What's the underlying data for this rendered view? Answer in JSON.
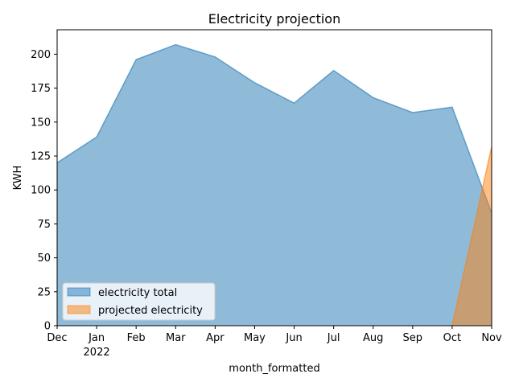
{
  "chart_data": {
    "type": "area",
    "title": "Electricity projection",
    "xlabel": "month_formatted",
    "ylabel": "KWH",
    "categories": [
      "Dec",
      "Jan",
      "Feb",
      "Mar",
      "Apr",
      "May",
      "Jun",
      "Jul",
      "Aug",
      "Sep",
      "Oct",
      "Nov"
    ],
    "category_sublabels": [
      "",
      "2022",
      "",
      "",
      "",
      "",
      "",
      "",
      "",
      "",
      "",
      ""
    ],
    "ylim": [
      0,
      218
    ],
    "yticks": [
      0,
      25,
      50,
      75,
      100,
      125,
      150,
      175,
      200
    ],
    "grid": false,
    "legend_position": "lower-left",
    "stacked": false,
    "series": [
      {
        "name": "electricity total",
        "color": "#1f77b4",
        "values": [
          120,
          139,
          196,
          207,
          198,
          179,
          164,
          188,
          168,
          157,
          161,
          83
        ]
      },
      {
        "name": "projected electricity",
        "color": "#ff7f0e",
        "values": [
          null,
          null,
          null,
          null,
          null,
          null,
          null,
          null,
          null,
          null,
          0,
          132
        ]
      }
    ]
  }
}
